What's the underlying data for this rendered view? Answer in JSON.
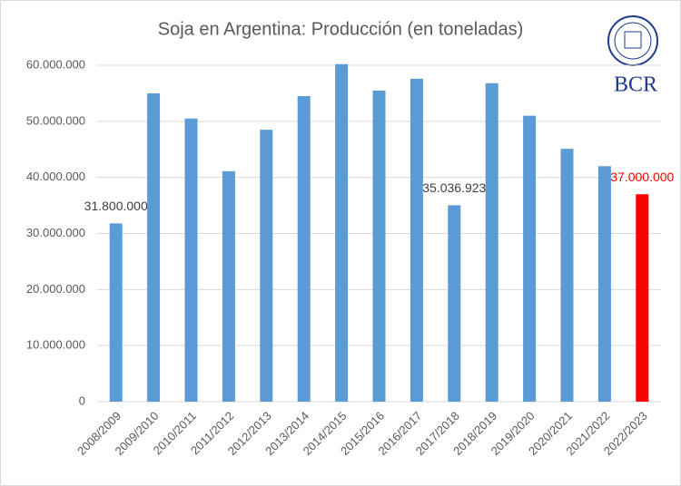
{
  "chart_data": {
    "type": "bar",
    "title": "Soja en Argentina: Producción (en toneladas)",
    "logo_text": "BCR",
    "categories": [
      "2008/2009",
      "2009/2010",
      "2010/2011",
      "2011/2012",
      "2012/2013",
      "2013/2014",
      "2014/2015",
      "2015/2016",
      "2016/2017",
      "2017/2018",
      "2018/2019",
      "2019/2020",
      "2020/2021",
      "2021/2022",
      "2022/2023"
    ],
    "values": [
      31800000,
      55000000,
      50500000,
      41100000,
      48500000,
      54500000,
      60200000,
      55500000,
      57600000,
      35036923,
      56800000,
      51000000,
      45100000,
      42000000,
      37000000
    ],
    "value_labels": [
      "31.800.000",
      null,
      null,
      null,
      null,
      null,
      null,
      null,
      null,
      "35.036.923",
      null,
      null,
      null,
      null,
      "37.000.000"
    ],
    "value_label_colors": [
      "#404040",
      null,
      null,
      null,
      null,
      null,
      null,
      null,
      null,
      "#404040",
      null,
      null,
      null,
      null,
      "#ff0000"
    ],
    "colors": [
      "#5b9bd5",
      "#5b9bd5",
      "#5b9bd5",
      "#5b9bd5",
      "#5b9bd5",
      "#5b9bd5",
      "#5b9bd5",
      "#5b9bd5",
      "#5b9bd5",
      "#5b9bd5",
      "#5b9bd5",
      "#5b9bd5",
      "#5b9bd5",
      "#5b9bd5",
      "#ff0000"
    ],
    "ylim": [
      0,
      60000000
    ],
    "yticks": [
      0,
      {
        "value": 10000000,
        "label": "10.000.000"
      },
      {
        "value": 20000000,
        "label": "20.000.000"
      },
      {
        "value": 30000000,
        "label": "30.000.000"
      },
      {
        "value": 40000000,
        "label": "40.000.000"
      },
      {
        "value": 50000000,
        "label": "50.000.000"
      },
      {
        "value": 60000000,
        "label": "60.000.000"
      }
    ],
    "grid": true
  }
}
